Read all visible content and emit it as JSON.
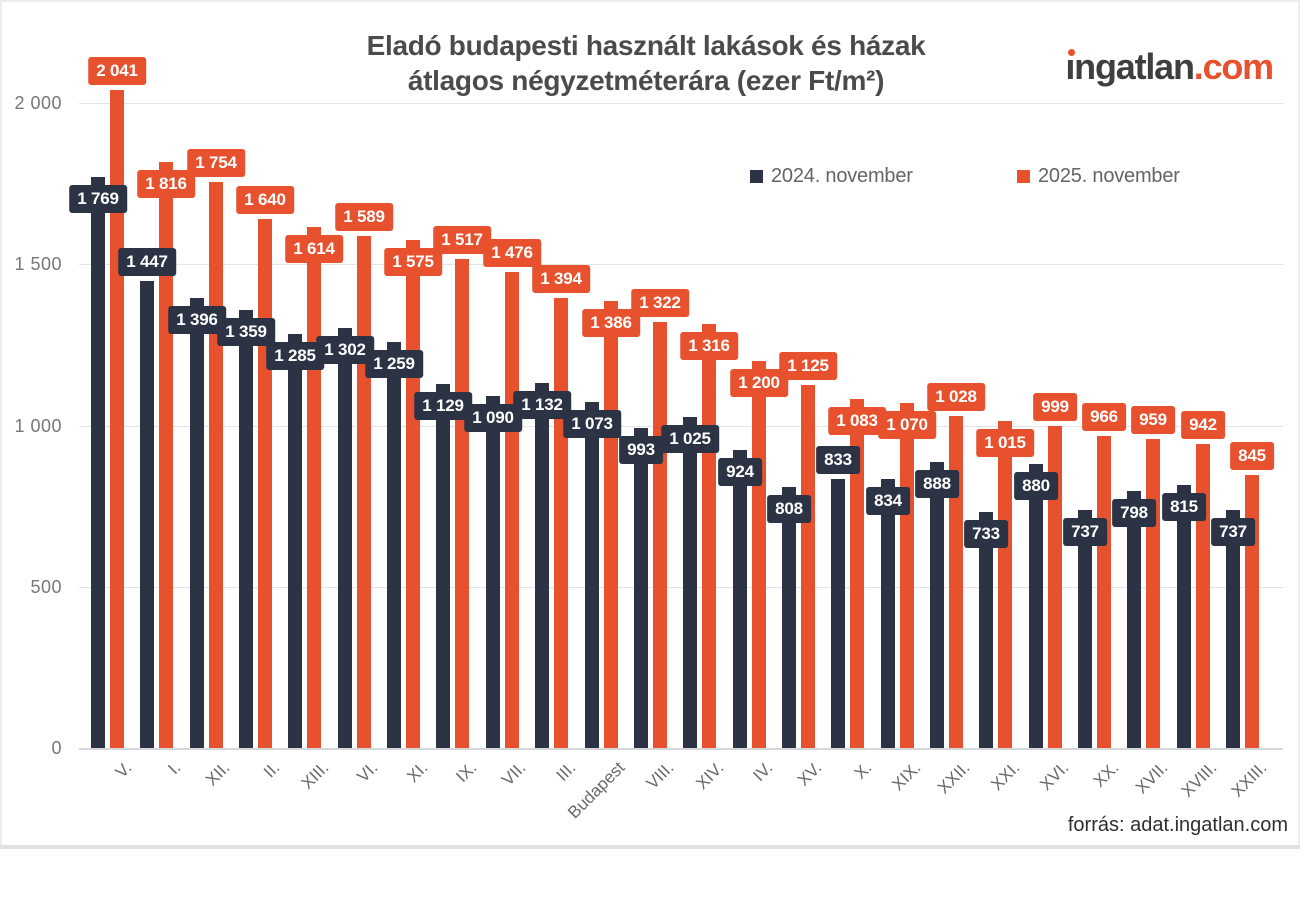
{
  "header": {
    "title_line1": "Eladó budapesti használt lakások és házak",
    "title_line2": "átlagos négyzetméterára (ezer Ft/m²)"
  },
  "logo": {
    "part1": "ingatlan",
    "part2": ".com"
  },
  "footer": {
    "source": "forrás: adat.ingatlan.com"
  },
  "colors": {
    "series_2024": "#2b3344",
    "series_2025": "#e7512e",
    "logo_dark": "#3f3f41",
    "logo_orange": "#e7512e",
    "gridline": "#e3e4e6",
    "axis_text": "#76777a"
  },
  "chart_data": {
    "type": "bar",
    "title": "Eladó budapesti használt lakások és házak átlagos négyzetméterára (ezer Ft/m²)",
    "categories": [
      "V.",
      "I.",
      "XII.",
      "II.",
      "XIII.",
      "VI.",
      "XI.",
      "IX.",
      "VII.",
      "III.",
      "Budapest",
      "VIII.",
      "XIV.",
      "IV.",
      "XV.",
      "X.",
      "XIX.",
      "XXII.",
      "XXI.",
      "XVI.",
      "XX.",
      "XVII.",
      "XVIII.",
      "XXIII."
    ],
    "series": [
      {
        "name": "2024. november",
        "color": "#2b3344",
        "values": [
          1769,
          1447,
          1396,
          1359,
          1285,
          1302,
          1259,
          1129,
          1090,
          1132,
          1073,
          993,
          1025,
          924,
          808,
          833,
          834,
          888,
          733,
          880,
          737,
          798,
          815,
          737
        ]
      },
      {
        "name": "2025. november",
        "color": "#e7512e",
        "values": [
          2041,
          1816,
          1754,
          1640,
          1614,
          1589,
          1575,
          1517,
          1476,
          1394,
          1386,
          1322,
          1316,
          1200,
          1125,
          1083,
          1070,
          1028,
          1015,
          999,
          966,
          959,
          942,
          845
        ]
      }
    ],
    "xlabel": "",
    "ylabel": "",
    "ylim": [
      0,
      2100
    ],
    "yticks": [
      0,
      500,
      1000,
      1500,
      2000
    ],
    "ytick_labels": [
      "0",
      "500",
      "1 000",
      "1 500",
      "2 000"
    ],
    "grid": "horizontal",
    "legend_position": "top-right",
    "value_labels": true
  }
}
